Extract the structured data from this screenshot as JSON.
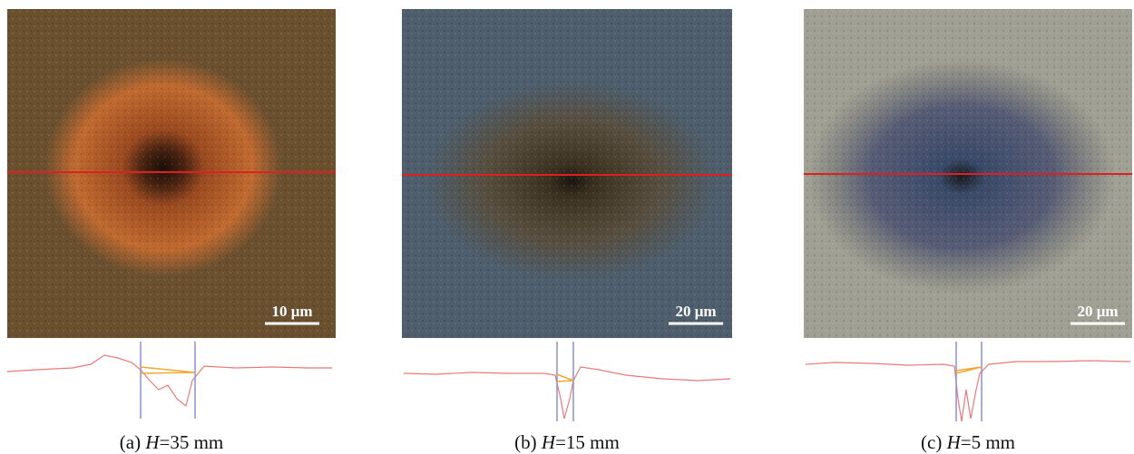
{
  "panels": [
    {
      "scale_bar": "10 μm",
      "caption": {
        "label": "(a)",
        "variable": "H",
        "value": "=35 mm"
      }
    },
    {
      "scale_bar": "20 μm",
      "caption": {
        "label": "(b)",
        "variable": "H",
        "value": "=15 mm"
      }
    },
    {
      "scale_bar": "20 μm",
      "caption": {
        "label": "(c)",
        "variable": "H",
        "value": "=5 mm"
      }
    }
  ]
}
